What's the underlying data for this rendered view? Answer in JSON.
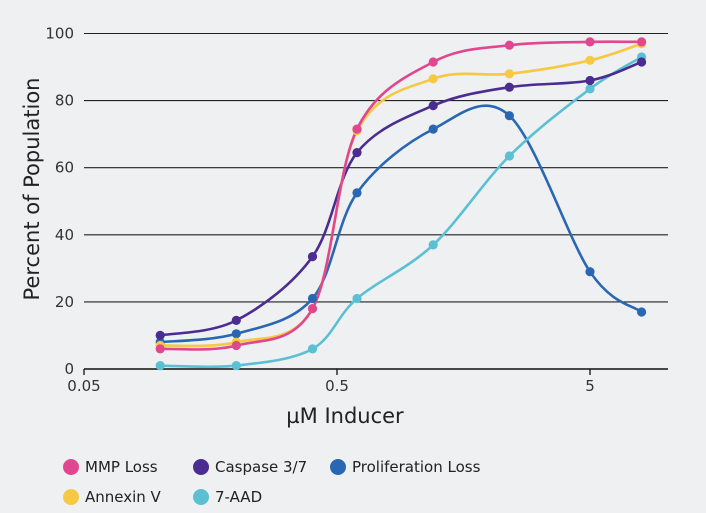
{
  "chart_data": {
    "type": "line",
    "title": "",
    "xlabel": "µM Inducer",
    "ylabel": "Percent of Population",
    "xscale": "log",
    "xlim": [
      0.05,
      8
    ],
    "ylim": [
      0,
      100
    ],
    "xticks": [
      0.05,
      0.5,
      5
    ],
    "xtick_labels": [
      "0.05",
      "0.5",
      "5"
    ],
    "yticks": [
      0,
      20,
      40,
      60,
      80,
      100
    ],
    "ytick_labels": [
      "0",
      "20",
      "40",
      "60",
      "80",
      "100"
    ],
    "grid": "horizontal",
    "legend_position": "bottom",
    "series": [
      {
        "name": "Proliferation Loss",
        "color": "#2a67b3",
        "x": [
          0.1,
          0.2,
          0.4,
          0.6,
          1.2,
          2.4,
          5,
          8
        ],
        "y": [
          8,
          10.5,
          21,
          52.5,
          71.5,
          75.5,
          29,
          17
        ]
      },
      {
        "name": "7-AAD",
        "color": "#5bc0d3",
        "x": [
          0.1,
          0.2,
          0.4,
          0.6,
          1.2,
          2.4,
          5,
          8
        ],
        "y": [
          1,
          1,
          6,
          21,
          37,
          63.5,
          83.5,
          93
        ]
      },
      {
        "name": "Caspase 3/7",
        "color": "#4b2c91",
        "x": [
          0.1,
          0.2,
          0.4,
          0.6,
          1.2,
          2.4,
          5,
          8
        ],
        "y": [
          10,
          14.5,
          33.5,
          64.5,
          78.5,
          84,
          86,
          91.5
        ]
      },
      {
        "name": "Annexin V",
        "color": "#f6c843",
        "x": [
          0.1,
          0.2,
          0.4,
          0.6,
          1.2,
          2.4,
          5,
          8
        ],
        "y": [
          7,
          8,
          18,
          71,
          86.5,
          88,
          92,
          97
        ]
      },
      {
        "name": "MMP Loss",
        "color": "#e0478f",
        "x": [
          0.1,
          0.2,
          0.4,
          0.6,
          1.2,
          2.4,
          5,
          8
        ],
        "y": [
          6,
          7,
          18,
          71.5,
          91.5,
          96.5,
          97.5,
          97.5
        ]
      }
    ],
    "legend": [
      {
        "name": "MMP Loss",
        "color": "#e0478f"
      },
      {
        "name": "Caspase 3/7",
        "color": "#4b2c91"
      },
      {
        "name": "Proliferation Loss",
        "color": "#2a67b3"
      },
      {
        "name": "Annexin V",
        "color": "#f6c843"
      },
      {
        "name": "7-AAD",
        "color": "#5bc0d3"
      }
    ]
  }
}
